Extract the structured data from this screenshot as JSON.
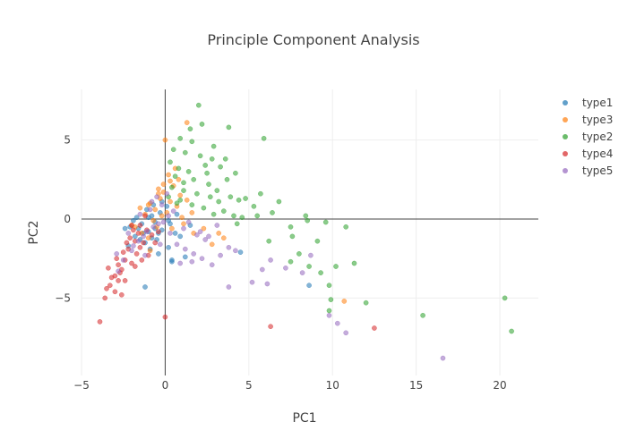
{
  "chart_data": {
    "type": "scatter",
    "title": "Principle Component Analysis",
    "xlabel": "PC1",
    "ylabel": "PC2",
    "xlim": [
      -5,
      22.3
    ],
    "ylim": [
      -9.9,
      8.2
    ],
    "xticks": [
      -5,
      0,
      5,
      10,
      15,
      20
    ],
    "yticks": [
      -5,
      0,
      5
    ],
    "grid": true,
    "zero_lines": true,
    "legend_position": "top-right",
    "series": [
      {
        "name": "type1",
        "color": "#1f77b4",
        "points": [
          [
            -0.6,
            -0.2
          ],
          [
            -1.0,
            -0.8
          ],
          [
            -1.4,
            -0.3
          ],
          [
            -0.3,
            0.4
          ],
          [
            -0.8,
            0.2
          ],
          [
            -1.9,
            -0.1
          ],
          [
            -1.6,
            -0.6
          ],
          [
            -0.5,
            -1.3
          ],
          [
            -1.2,
            -1.5
          ],
          [
            -0.2,
            -0.7
          ],
          [
            0.3,
            -0.3
          ],
          [
            0.6,
            -0.9
          ],
          [
            0.2,
            -1.8
          ],
          [
            -0.4,
            -2.2
          ],
          [
            0.4,
            -2.7
          ],
          [
            0.9,
            -1.1
          ],
          [
            1.2,
            -2.4
          ],
          [
            1.5,
            -0.4
          ],
          [
            -1.1,
            0.6
          ],
          [
            -0.7,
            0.9
          ],
          [
            -2.1,
            -0.5
          ],
          [
            -1.8,
            -1.1
          ],
          [
            -0.9,
            -1.9
          ],
          [
            -1.3,
            -0.9
          ],
          [
            0.1,
            0.8
          ],
          [
            -0.2,
            1.1
          ],
          [
            0.7,
            0.3
          ],
          [
            0.2,
            -0.1
          ],
          [
            -0.6,
            -0.6
          ],
          [
            -1.5,
            -1.3
          ],
          [
            -2.4,
            -0.6
          ],
          [
            4.5,
            -2.1
          ],
          [
            8.6,
            -4.2
          ],
          [
            -1.2,
            -4.3
          ],
          [
            0.4,
            -2.6
          ],
          [
            -0.8,
            -1.2
          ],
          [
            -0.4,
            -0.9
          ],
          [
            -1.7,
            0.1
          ],
          [
            -2.2,
            -1.7
          ],
          [
            -1.0,
            0.1
          ]
        ]
      },
      {
        "name": "type3",
        "color": "#ff7f0e",
        "points": [
          [
            0.0,
            5.0
          ],
          [
            0.6,
            3.2
          ],
          [
            1.3,
            6.1
          ],
          [
            0.2,
            2.8
          ],
          [
            0.5,
            2.1
          ],
          [
            -0.1,
            2.2
          ],
          [
            -0.4,
            1.6
          ],
          [
            0.9,
            1.5
          ],
          [
            -0.9,
            1.0
          ],
          [
            -0.6,
            0.6
          ],
          [
            0.3,
            1.1
          ],
          [
            1.3,
            1.2
          ],
          [
            1.6,
            0.4
          ],
          [
            -1.2,
            0.3
          ],
          [
            -0.7,
            -0.1
          ],
          [
            0.1,
            0.4
          ],
          [
            -0.3,
            1.3
          ],
          [
            0.7,
            0.8
          ],
          [
            -1.8,
            -0.5
          ],
          [
            -1.4,
            -0.9
          ],
          [
            -0.5,
            -0.5
          ],
          [
            -1.0,
            -1.2
          ],
          [
            0.4,
            -0.6
          ],
          [
            1.1,
            -0.3
          ],
          [
            -1.5,
            0.7
          ],
          [
            -0.1,
            1.7
          ],
          [
            0.8,
            2.5
          ],
          [
            1.7,
            -0.9
          ],
          [
            2.3,
            -0.6
          ],
          [
            2.8,
            -1.6
          ],
          [
            3.2,
            -0.9
          ],
          [
            -0.9,
            -2.0
          ],
          [
            -2.0,
            -0.4
          ],
          [
            10.7,
            -5.2
          ],
          [
            3.5,
            -1.2
          ],
          [
            -0.2,
            0.2
          ],
          [
            0.3,
            2.4
          ],
          [
            -0.4,
            1.9
          ],
          [
            1.0,
            0.1
          ],
          [
            -1.0,
            0.9
          ]
        ]
      },
      {
        "name": "type2",
        "color": "#2ca02c",
        "points": [
          [
            2.0,
            7.2
          ],
          [
            1.5,
            5.7
          ],
          [
            2.2,
            6.0
          ],
          [
            3.8,
            5.8
          ],
          [
            5.9,
            5.1
          ],
          [
            0.9,
            5.1
          ],
          [
            1.6,
            4.9
          ],
          [
            2.9,
            4.6
          ],
          [
            0.5,
            4.4
          ],
          [
            1.2,
            4.2
          ],
          [
            2.1,
            4.0
          ],
          [
            3.6,
            3.8
          ],
          [
            0.3,
            3.6
          ],
          [
            0.8,
            3.2
          ],
          [
            1.4,
            3.0
          ],
          [
            2.4,
            3.4
          ],
          [
            3.3,
            3.3
          ],
          [
            4.2,
            2.9
          ],
          [
            0.6,
            2.7
          ],
          [
            1.7,
            2.5
          ],
          [
            2.6,
            2.2
          ],
          [
            3.7,
            2.5
          ],
          [
            0.4,
            2.0
          ],
          [
            1.1,
            1.8
          ],
          [
            1.9,
            1.6
          ],
          [
            2.7,
            1.4
          ],
          [
            3.2,
            1.1
          ],
          [
            3.9,
            1.4
          ],
          [
            4.4,
            1.2
          ],
          [
            0.2,
            1.4
          ],
          [
            0.9,
            1.2
          ],
          [
            1.6,
            0.9
          ],
          [
            2.3,
            0.7
          ],
          [
            2.9,
            0.3
          ],
          [
            3.5,
            0.5
          ],
          [
            4.1,
            0.2
          ],
          [
            4.6,
            0.1
          ],
          [
            5.5,
            0.2
          ],
          [
            6.4,
            0.4
          ],
          [
            6.8,
            1.1
          ],
          [
            5.7,
            1.6
          ],
          [
            4.3,
            -0.3
          ],
          [
            7.6,
            -1.1
          ],
          [
            8.4,
            0.2
          ],
          [
            8.5,
            -0.1
          ],
          [
            7.5,
            -0.5
          ],
          [
            9.6,
            -0.2
          ],
          [
            10.8,
            -0.5
          ],
          [
            9.1,
            -1.4
          ],
          [
            8.0,
            -2.2
          ],
          [
            7.5,
            -2.7
          ],
          [
            8.6,
            -3.0
          ],
          [
            9.3,
            -3.4
          ],
          [
            10.2,
            -3.0
          ],
          [
            9.8,
            -4.2
          ],
          [
            11.3,
            -2.8
          ],
          [
            12.0,
            -5.3
          ],
          [
            9.9,
            -5.1
          ],
          [
            9.8,
            -5.8
          ],
          [
            15.4,
            -6.1
          ],
          [
            20.3,
            -5.0
          ],
          [
            20.7,
            -7.1
          ],
          [
            1.1,
            2.3
          ],
          [
            0.7,
            1.0
          ],
          [
            2.5,
            2.9
          ],
          [
            3.1,
            1.8
          ],
          [
            4.8,
            1.3
          ],
          [
            5.3,
            0.8
          ],
          [
            6.2,
            -1.4
          ],
          [
            2.8,
            3.8
          ]
        ]
      },
      {
        "name": "type4",
        "color": "#d62728",
        "points": [
          [
            -3.9,
            -6.5
          ],
          [
            -3.6,
            -5.0
          ],
          [
            -3.3,
            -4.2
          ],
          [
            -3.0,
            -4.6
          ],
          [
            -2.8,
            -3.9
          ],
          [
            -2.6,
            -3.2
          ],
          [
            -2.4,
            -2.6
          ],
          [
            -2.9,
            -2.5
          ],
          [
            -2.2,
            -1.9
          ],
          [
            -1.8,
            -1.4
          ],
          [
            -2.5,
            -2.1
          ],
          [
            -2.0,
            -2.8
          ],
          [
            -1.6,
            -0.9
          ],
          [
            -1.3,
            -1.5
          ],
          [
            -2.7,
            -3.4
          ],
          [
            -3.2,
            -3.7
          ],
          [
            -2.1,
            -1.2
          ],
          [
            -1.7,
            -2.2
          ],
          [
            -1.5,
            -0.4
          ],
          [
            -1.1,
            -0.7
          ],
          [
            -0.8,
            -1.0
          ],
          [
            -1.9,
            -0.7
          ],
          [
            -2.3,
            -1.5
          ],
          [
            -1.4,
            -2.6
          ],
          [
            -3.5,
            -4.4
          ],
          [
            -2.6,
            -4.8
          ],
          [
            0.0,
            -6.2
          ],
          [
            6.3,
            -6.8
          ],
          [
            12.5,
            -6.9
          ],
          [
            -1.0,
            -2.3
          ],
          [
            -0.6,
            -1.5
          ],
          [
            -2.8,
            -2.9
          ],
          [
            -3.4,
            -3.1
          ],
          [
            -2.0,
            -0.4
          ],
          [
            -1.2,
            0.2
          ],
          [
            -0.4,
            -0.8
          ],
          [
            -3.0,
            -3.6
          ],
          [
            -1.5,
            -1.8
          ],
          [
            -2.4,
            -3.9
          ],
          [
            -1.8,
            -3.0
          ]
        ]
      },
      {
        "name": "type5",
        "color": "#9467bd",
        "points": [
          [
            -0.5,
            1.4
          ],
          [
            -0.2,
            0.9
          ],
          [
            -0.9,
            0.6
          ],
          [
            0.2,
            0.2
          ],
          [
            -0.4,
            -0.3
          ],
          [
            -1.1,
            -0.8
          ],
          [
            -1.6,
            -1.4
          ],
          [
            -2.0,
            -2.0
          ],
          [
            -2.5,
            -2.6
          ],
          [
            -2.8,
            -3.3
          ],
          [
            -1.3,
            -1.1
          ],
          [
            -0.7,
            -0.5
          ],
          [
            0.3,
            -0.9
          ],
          [
            0.7,
            -1.6
          ],
          [
            1.2,
            -1.9
          ],
          [
            1.7,
            -2.2
          ],
          [
            2.2,
            -2.5
          ],
          [
            2.8,
            -2.9
          ],
          [
            3.3,
            -2.3
          ],
          [
            3.8,
            -1.8
          ],
          [
            4.2,
            -2.0
          ],
          [
            5.8,
            -3.2
          ],
          [
            6.3,
            -2.6
          ],
          [
            5.2,
            -4.0
          ],
          [
            6.1,
            -4.1
          ],
          [
            3.8,
            -4.3
          ],
          [
            7.2,
            -3.1
          ],
          [
            8.2,
            -3.4
          ],
          [
            8.7,
            -2.3
          ],
          [
            9.8,
            -6.1
          ],
          [
            10.3,
            -6.6
          ],
          [
            10.8,
            -7.2
          ],
          [
            16.6,
            -8.8
          ],
          [
            -1.5,
            0.3
          ],
          [
            -0.8,
            1.1
          ],
          [
            0.5,
            0.5
          ],
          [
            1.1,
            -0.6
          ],
          [
            1.9,
            -1.0
          ],
          [
            2.4,
            -1.3
          ],
          [
            -2.2,
            -0.9
          ],
          [
            -1.9,
            -1.7
          ],
          [
            -0.3,
            -1.6
          ],
          [
            0.9,
            -2.8
          ],
          [
            1.6,
            -2.7
          ],
          [
            2.6,
            -1.1
          ],
          [
            3.1,
            -0.4
          ],
          [
            -0.1,
            -0.2
          ],
          [
            0.1,
            1.6
          ],
          [
            -1.2,
            -2.3
          ],
          [
            -2.9,
            -2.2
          ],
          [
            1.4,
            -0.2
          ],
          [
            2.1,
            -0.8
          ]
        ]
      }
    ]
  }
}
